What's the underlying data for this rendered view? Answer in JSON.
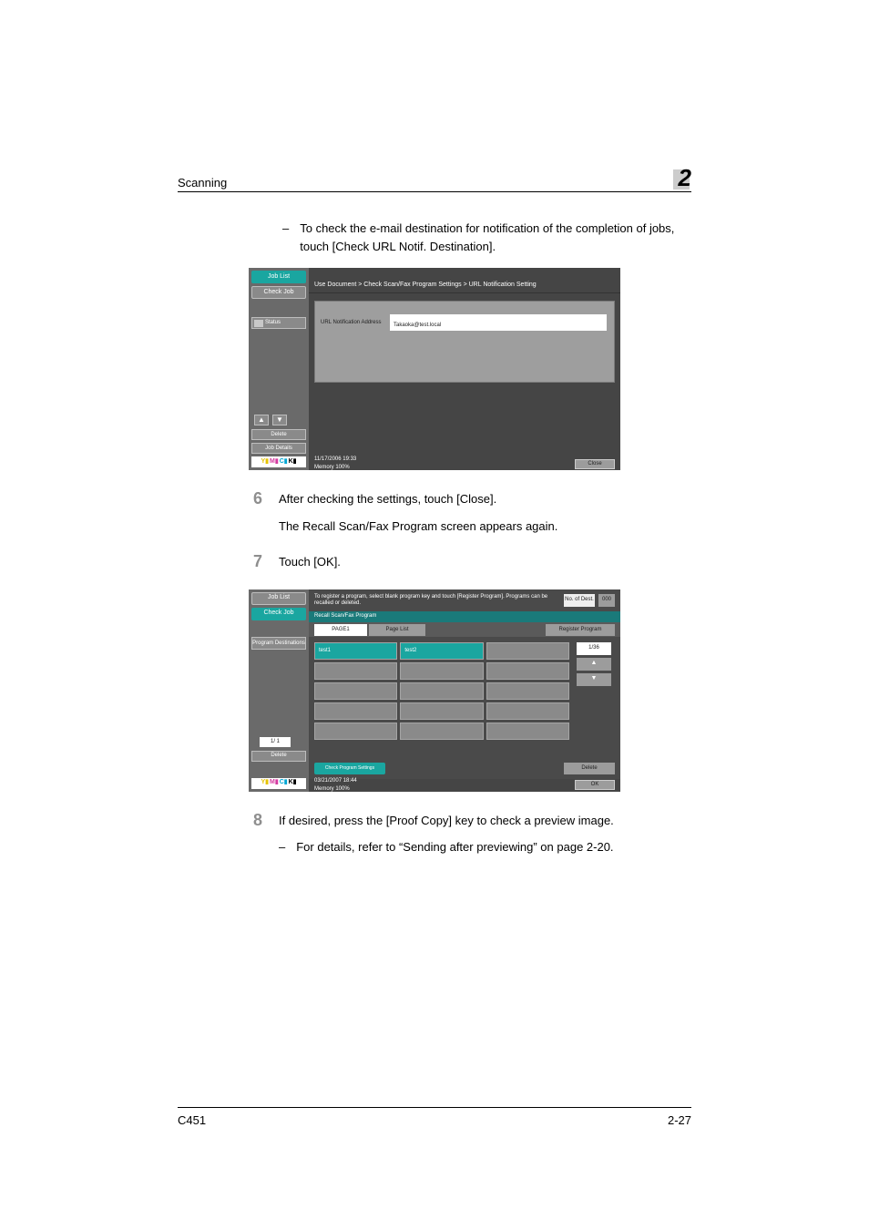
{
  "header": {
    "section": "Scanning",
    "chapter": "2"
  },
  "intro_bullet": "To check the e-mail destination for notification of the completion of jobs, touch [Check URL Notif. Destination].",
  "step6": {
    "num": "6",
    "line1": "After checking the settings, touch [Close].",
    "line2": "The Recall Scan/Fax Program screen appears again."
  },
  "step7": {
    "num": "7",
    "line1": "Touch [OK]."
  },
  "step8": {
    "num": "8",
    "line1": "If desired, press the [Proof Copy] key to check a preview image.",
    "sub": "For details, refer to “Sending after previewing” on page 2-20."
  },
  "footer": {
    "model": "C451",
    "page": "2-27"
  },
  "ss1": {
    "tab_joblist": "Job List",
    "tab_checkjob": "Check Job",
    "status": "Status",
    "breadcrumb": "Use Document > Check Scan/Fax Program Settings > URL Notification Setting",
    "panel_label": "URL Notification Address",
    "panel_value": "Takaoka@test.local",
    "delete": "Delete",
    "jobdetails": "Job Details",
    "datetime": "11/17/2006   19:33",
    "memory": "Memory        100%",
    "close": "Close",
    "colors": {
      "teal": "#1aa6a0",
      "panel": "#9e9e9e",
      "dark": "#454545"
    }
  },
  "ss2": {
    "tab_joblist": "Job List",
    "tab_checkjob": "Check Job",
    "programdest": "Program Destinations",
    "pager": "1/  1",
    "delete": "Delete",
    "msg": "To register a program, select blank program key and touch [Register Program]. Programs can be recalled or deleted.",
    "dest_lbl": "No. of Dest.",
    "dest_n": "000",
    "title": "Recall Scan/Fax Program",
    "page1": "PAGE1",
    "pagelist": "Page List",
    "register": "Register Program",
    "cell_a": "test1",
    "cell_b": "test2",
    "rpage": "1/36",
    "chk": "Check Program Settings",
    "delete2": "Delete",
    "datetime": "03/21/2007   18:44",
    "memory": "Memory        100%",
    "ok": "OK"
  }
}
